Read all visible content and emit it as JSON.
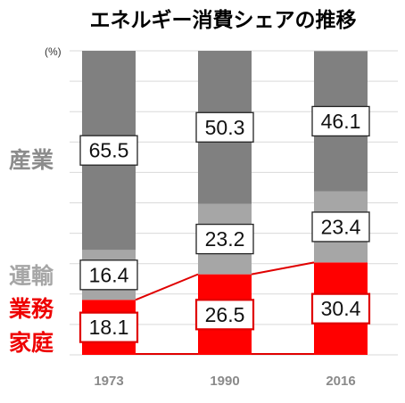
{
  "chart_data": {
    "type": "bar",
    "stacked": true,
    "normalized_100": true,
    "title": "エネルギー消費シェアの推移",
    "unit_label": "(%)",
    "categories": [
      "1973",
      "1990",
      "2016"
    ],
    "series": [
      {
        "name": "業務\n家庭",
        "label_lines": [
          "業務",
          "家庭"
        ],
        "color": "#ff0000",
        "values": [
          18.1,
          26.5,
          30.4
        ]
      },
      {
        "name": "運輸",
        "label_lines": [
          "運輸"
        ],
        "color": "#a6a6a6",
        "values": [
          16.4,
          23.2,
          23.4
        ]
      },
      {
        "name": "産業",
        "label_lines": [
          "産業"
        ],
        "color": "#808080",
        "values": [
          65.5,
          50.3,
          46.1
        ]
      }
    ],
    "ylim": [
      0,
      100
    ],
    "grid": true,
    "connector_lines_on": "業務\n家庭"
  }
}
